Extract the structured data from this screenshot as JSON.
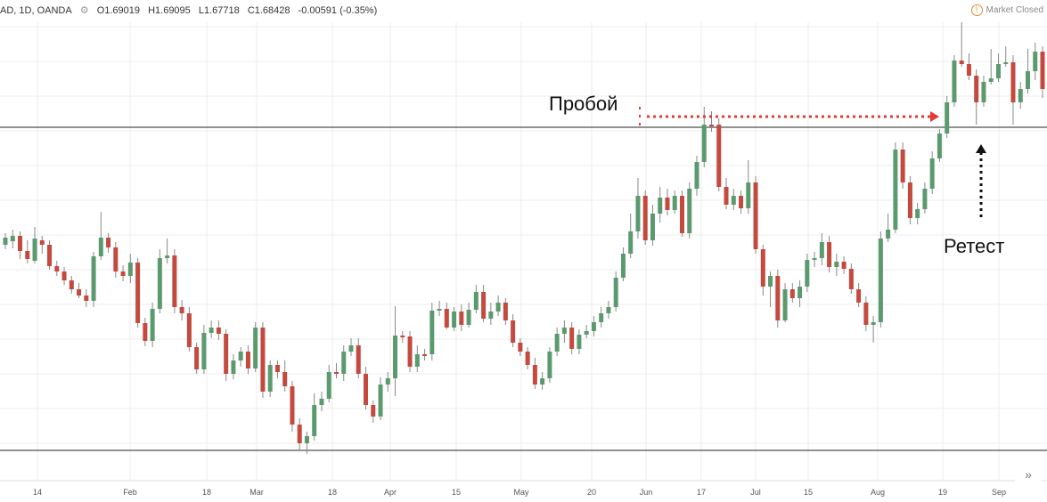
{
  "legend": {
    "symbol": "AD, 1D, OANDA",
    "open": "O1.69019",
    "high": "H1.69095",
    "low": "L1.67718",
    "close": "C1.68428",
    "change": "-0.00591 (-0.35%)"
  },
  "status": {
    "market": "Market Closed"
  },
  "annotations": {
    "breakout": "Пробой",
    "retest": "Ретест"
  },
  "colors": {
    "up": "#5b9a6e",
    "down": "#c4493e",
    "arrow_red": "#e53935",
    "arrow_black": "#111111",
    "grid": "#eeeeee"
  },
  "chart_data": {
    "type": "candlestick",
    "series_note": "",
    "xlabels": [
      "14",
      "Feb",
      "18",
      "Mar",
      "18",
      "Apr",
      "15",
      "May",
      "20",
      "Jun",
      "17",
      "Jul",
      "15",
      "Aug",
      "19",
      "Sep"
    ],
    "levels": {
      "resistance": 143,
      "support": 506
    },
    "candles": [
      [
        275,
        267,
        262,
        280
      ],
      [
        271,
        265,
        258,
        279
      ],
      [
        265,
        282,
        260,
        291
      ],
      [
        282,
        291,
        270,
        296
      ],
      [
        293,
        268,
        255,
        296
      ],
      [
        270,
        275,
        265,
        285
      ],
      [
        275,
        299,
        270,
        303
      ],
      [
        299,
        305,
        293,
        310
      ],
      [
        305,
        315,
        300,
        320
      ],
      [
        315,
        325,
        310,
        330
      ],
      [
        325,
        332,
        318,
        335
      ],
      [
        332,
        338,
        325,
        345
      ],
      [
        338,
        288,
        283,
        345
      ],
      [
        288,
        267,
        238,
        292
      ],
      [
        267,
        278,
        262,
        284
      ],
      [
        278,
        305,
        272,
        312
      ],
      [
        305,
        310,
        298,
        316
      ],
      [
        310,
        295,
        285,
        318
      ],
      [
        295,
        363,
        290,
        368
      ],
      [
        363,
        383,
        357,
        389
      ],
      [
        383,
        347,
        340,
        390
      ],
      [
        347,
        290,
        280,
        352
      ],
      [
        290,
        287,
        268,
        296
      ],
      [
        287,
        345,
        280,
        352
      ],
      [
        345,
        352,
        337,
        360
      ],
      [
        352,
        390,
        345,
        395
      ],
      [
        390,
        415,
        385,
        420
      ],
      [
        415,
        374,
        365,
        420
      ],
      [
        374,
        368,
        360,
        380
      ],
      [
        368,
        375,
        360,
        382
      ],
      [
        375,
        420,
        370,
        428
      ],
      [
        420,
        405,
        398,
        426
      ],
      [
        405,
        395,
        390,
        412
      ],
      [
        395,
        414,
        388,
        420
      ],
      [
        414,
        368,
        362,
        418
      ],
      [
        368,
        440,
        362,
        447
      ],
      [
        440,
        410,
        405,
        446
      ],
      [
        410,
        418,
        405,
        425
      ],
      [
        418,
        434,
        405,
        440
      ],
      [
        434,
        477,
        428,
        485
      ],
      [
        477,
        498,
        470,
        505
      ],
      [
        498,
        490,
        485,
        510
      ],
      [
        490,
        455,
        442,
        495
      ],
      [
        455,
        448,
        440,
        462
      ],
      [
        448,
        418,
        410,
        452
      ],
      [
        418,
        420,
        408,
        425
      ],
      [
        420,
        395,
        388,
        428
      ],
      [
        395,
        388,
        380,
        400
      ],
      [
        388,
        420,
        380,
        425
      ],
      [
        420,
        455,
        412,
        460
      ],
      [
        455,
        468,
        450,
        475
      ],
      [
        468,
        432,
        424,
        472
      ],
      [
        432,
        425,
        418,
        440
      ],
      [
        425,
        377,
        344,
        445
      ],
      [
        377,
        378,
        372,
        385
      ],
      [
        378,
        412,
        372,
        418
      ],
      [
        412,
        398,
        388,
        418
      ],
      [
        398,
        398,
        392,
        405
      ],
      [
        398,
        349,
        340,
        405
      ],
      [
        349,
        347,
        338,
        355
      ],
      [
        347,
        368,
        340,
        370
      ],
      [
        368,
        350,
        345,
        372
      ],
      [
        350,
        365,
        342,
        372
      ],
      [
        365,
        348,
        340,
        368
      ],
      [
        348,
        328,
        320,
        352
      ],
      [
        328,
        358,
        320,
        362
      ],
      [
        358,
        350,
        340,
        365
      ],
      [
        350,
        340,
        332,
        355
      ],
      [
        340,
        360,
        335,
        365
      ],
      [
        360,
        385,
        353,
        390
      ],
      [
        385,
        395,
        380,
        400
      ],
      [
        395,
        410,
        390,
        415
      ],
      [
        410,
        432,
        402,
        437
      ],
      [
        432,
        425,
        418,
        438
      ],
      [
        425,
        395,
        390,
        430
      ],
      [
        395,
        375,
        368,
        400
      ],
      [
        375,
        368,
        360,
        385
      ],
      [
        368,
        392,
        362,
        398
      ],
      [
        392,
        376,
        370,
        398
      ],
      [
        376,
        372,
        365,
        380
      ],
      [
        372,
        362,
        355,
        378
      ],
      [
        362,
        352,
        345,
        368
      ],
      [
        352,
        345,
        338,
        358
      ],
      [
        345,
        312,
        305,
        350
      ],
      [
        312,
        285,
        278,
        316
      ],
      [
        285,
        260,
        240,
        290
      ],
      [
        260,
        220,
        200,
        268
      ],
      [
        220,
        270,
        214,
        275
      ],
      [
        270,
        240,
        230,
        276
      ],
      [
        240,
        222,
        210,
        250
      ],
      [
        222,
        236,
        212,
        242
      ],
      [
        236,
        220,
        214,
        240
      ],
      [
        220,
        262,
        214,
        266
      ],
      [
        262,
        212,
        205,
        268
      ],
      [
        212,
        182,
        175,
        220
      ],
      [
        182,
        140,
        120,
        188
      ],
      [
        140,
        140,
        125,
        148
      ],
      [
        140,
        210,
        133,
        215
      ],
      [
        210,
        230,
        200,
        235
      ],
      [
        230,
        220,
        212,
        236
      ],
      [
        220,
        234,
        214,
        240
      ],
      [
        234,
        205,
        180,
        240
      ],
      [
        205,
        280,
        198,
        285
      ],
      [
        280,
        322,
        275,
        332
      ],
      [
        322,
        310,
        305,
        345
      ],
      [
        310,
        360,
        303,
        368
      ],
      [
        360,
        325,
        318,
        362
      ],
      [
        325,
        335,
        318,
        340
      ],
      [
        335,
        322,
        315,
        345
      ],
      [
        322,
        292,
        285,
        328
      ],
      [
        292,
        290,
        283,
        300
      ],
      [
        290,
        272,
        262,
        298
      ],
      [
        272,
        300,
        265,
        306
      ],
      [
        300,
        294,
        285,
        310
      ],
      [
        294,
        302,
        288,
        308
      ],
      [
        302,
        325,
        296,
        330
      ],
      [
        325,
        340,
        318,
        345
      ],
      [
        340,
        365,
        333,
        372
      ],
      [
        365,
        362,
        355,
        385
      ],
      [
        362,
        268,
        260,
        368
      ],
      [
        268,
        258,
        240,
        272
      ],
      [
        258,
        168,
        160,
        262
      ],
      [
        168,
        205,
        160,
        212
      ],
      [
        205,
        245,
        198,
        252
      ],
      [
        245,
        235,
        228,
        252
      ],
      [
        235,
        212,
        205,
        240
      ],
      [
        212,
        178,
        170,
        218
      ],
      [
        178,
        150,
        145,
        182
      ],
      [
        150,
        115,
        108,
        155
      ],
      [
        115,
        68,
        62,
        120
      ],
      [
        68,
        72,
        25,
        75
      ],
      [
        72,
        85,
        60,
        90
      ],
      [
        85,
        115,
        78,
        140
      ],
      [
        115,
        92,
        85,
        120
      ],
      [
        92,
        88,
        55,
        95
      ],
      [
        88,
        72,
        60,
        92
      ],
      [
        72,
        70,
        52,
        75
      ],
      [
        70,
        115,
        62,
        140
      ],
      [
        115,
        100,
        92,
        122
      ],
      [
        100,
        80,
        55,
        105
      ],
      [
        80,
        58,
        48,
        90
      ],
      [
        58,
        100,
        52,
        110
      ]
    ]
  }
}
